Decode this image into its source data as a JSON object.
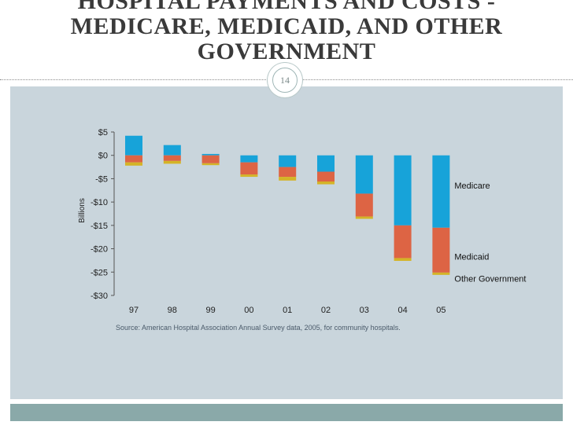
{
  "slide": {
    "title_lines": [
      "HOSPITAL PAYMENTS AND COSTS -",
      "MEDICARE, MEDICAID, AND OTHER",
      "GOVERNMENT"
    ],
    "page_number": "14",
    "source_note": "Source: American Hospital Association Annual Survey data, 2005, for community hospitals."
  },
  "chart_data": {
    "type": "bar",
    "stacked": true,
    "categories": [
      "97",
      "98",
      "99",
      "00",
      "01",
      "02",
      "03",
      "04",
      "05"
    ],
    "series": [
      {
        "name": "Medicare",
        "values": [
          4.2,
          2.2,
          0.3,
          -1.5,
          -2.5,
          -3.5,
          -8.2,
          -15.0,
          -15.5
        ],
        "color": "#17a3d9"
      },
      {
        "name": "Medicaid",
        "values": [
          -1.5,
          -1.2,
          -1.7,
          -2.6,
          -2.1,
          -2.1,
          -4.9,
          -7.0,
          -9.6
        ],
        "color": "#dd6444"
      },
      {
        "name": "Other Government",
        "values": [
          -0.7,
          -0.6,
          -0.4,
          -0.5,
          -0.8,
          -0.6,
          -0.5,
          -0.6,
          -0.5
        ],
        "color": "#d4b427"
      }
    ],
    "ylabel": "Billions",
    "ylim": [
      -30,
      5
    ],
    "yticks": [
      5,
      0,
      -5,
      -10,
      -15,
      -20,
      -25,
      -30
    ],
    "ytick_labels": [
      "$5",
      "$0",
      "-$5",
      "-$10",
      "-$15",
      "-$20",
      "-$25",
      "-$30"
    ],
    "grid": false,
    "legend": "right, inline labels next to last bar"
  }
}
